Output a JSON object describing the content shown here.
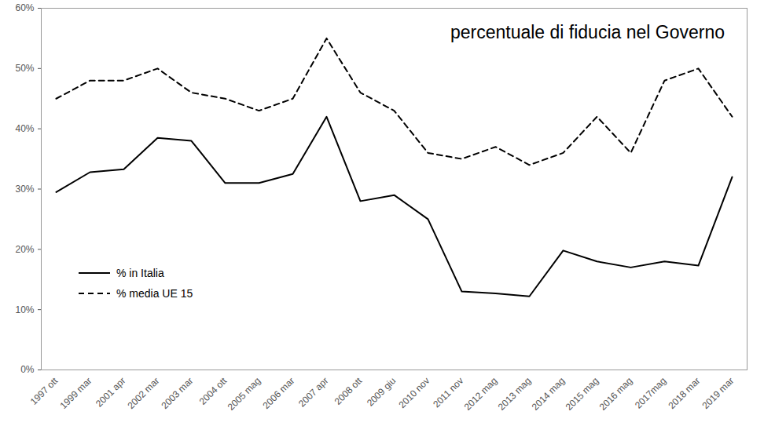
{
  "chart_data": {
    "type": "line",
    "title": "percentuale di fiducia nel Governo",
    "categories": [
      "1997 ott",
      "1999 mar",
      "2001 apr",
      "2002 mar",
      "2003 mar",
      "2004 ott",
      "2005 mag",
      "2006 mar",
      "2007 apr",
      "2008 ott",
      "2009 giu",
      "2010 nov",
      "2011 nov",
      "2012 mag",
      "2013 mag",
      "2014 mag",
      "2015 mag",
      "2016 mag",
      "2017mag",
      "2018 mar",
      "2019 mar"
    ],
    "series": [
      {
        "name": "% in Italia",
        "color": "#000000",
        "line_style": "solid",
        "values": [
          29.5,
          32.8,
          33.3,
          38.5,
          38,
          31,
          31,
          32.5,
          42,
          28,
          29,
          25,
          13,
          12.7,
          12.2,
          19.8,
          18,
          17,
          18,
          17.3,
          32
        ]
      },
      {
        "name": "% media UE 15",
        "color": "#000000",
        "line_style": "dashed",
        "values": [
          45,
          48,
          48,
          50,
          46,
          45,
          43,
          45,
          55,
          46,
          43,
          36,
          35,
          37,
          34,
          36,
          42,
          36,
          48,
          50,
          42
        ]
      }
    ],
    "ylim": [
      0,
      60
    ],
    "yticks": [
      {
        "value": 0,
        "label": "0%"
      },
      {
        "value": 10,
        "label": "10%"
      },
      {
        "value": 20,
        "label": "20%"
      },
      {
        "value": 30,
        "label": "30%"
      },
      {
        "value": 40,
        "label": "40%"
      },
      {
        "value": 50,
        "label": "50%"
      },
      {
        "value": 60,
        "label": "60%"
      }
    ],
    "grid": false,
    "legend": "lower left"
  }
}
